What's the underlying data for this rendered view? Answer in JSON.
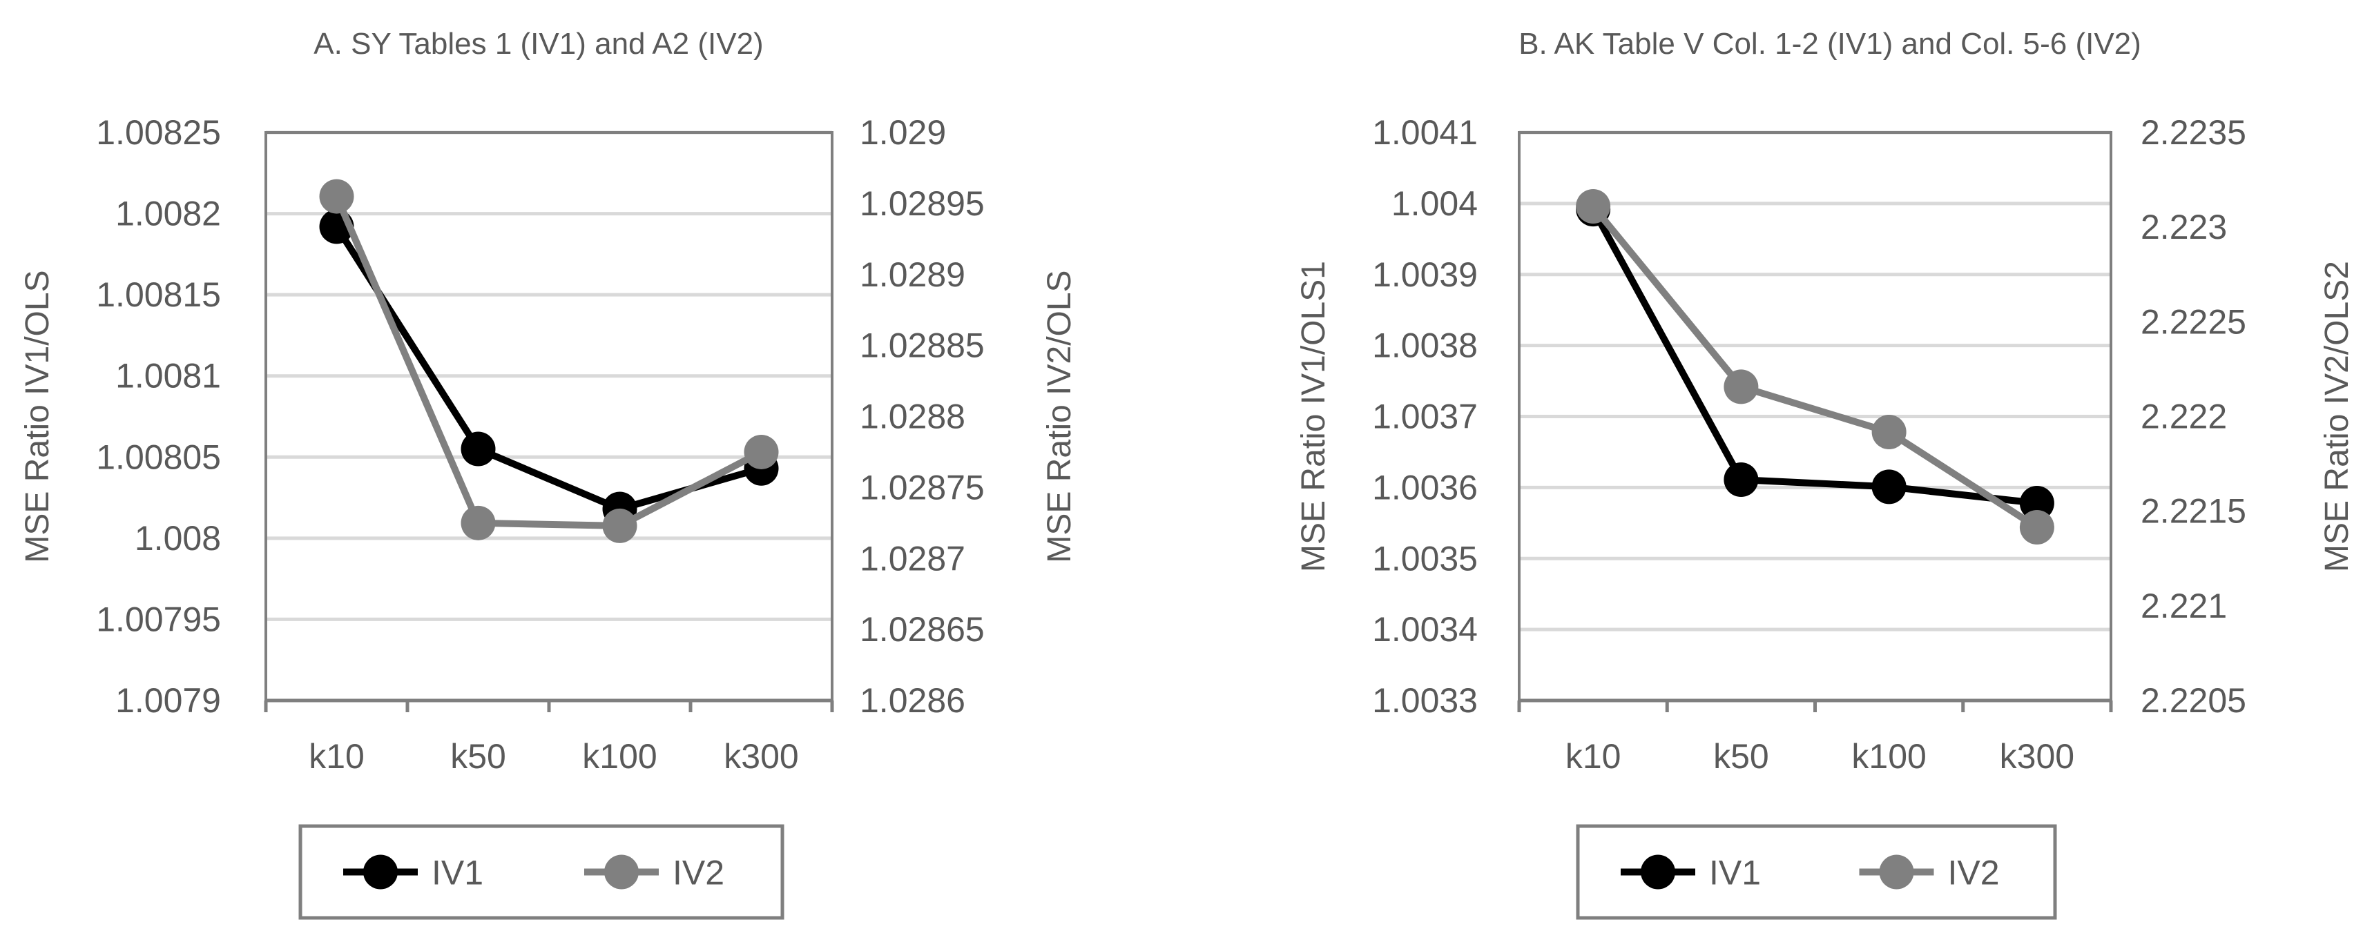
{
  "colors": {
    "IV1": "#000000",
    "IV2": "#808080"
  },
  "chart_data": [
    {
      "type": "line",
      "title": "A. SY Tables 1 (IV1) and A2 (IV2)",
      "categories": [
        "k10",
        "k50",
        "k100",
        "k300"
      ],
      "left_axis": {
        "label": "MSE Ratio IV1/OLS",
        "ylim": [
          1.0079,
          1.00825
        ],
        "ticks": [
          "1.0079",
          "1.00795",
          "1.008",
          "1.00805",
          "1.0081",
          "1.00815",
          "1.0082",
          "1.00825"
        ]
      },
      "right_axis": {
        "label": "MSE Ratio IV2/OLS",
        "ylim": [
          1.0286,
          1.029
        ],
        "ticks": [
          "1.0286",
          "1.02865",
          "1.0287",
          "1.02875",
          "1.0288",
          "1.02885",
          "1.0289",
          "1.02895",
          "1.029"
        ]
      },
      "series": [
        {
          "name": "IV1",
          "axis": "left",
          "values": [
            1.008192,
            1.008055,
            1.008018,
            1.008043
          ]
        },
        {
          "name": "IV2",
          "axis": "right",
          "values": [
            1.028955,
            1.028725,
            1.028723,
            1.028775
          ]
        }
      ],
      "grid": true,
      "legend": "bottom"
    },
    {
      "type": "line",
      "title": "B. AK Table V Col. 1-2 (IV1) and Col. 5-6 (IV2)",
      "categories": [
        "k10",
        "k50",
        "k100",
        "k300"
      ],
      "left_axis": {
        "label": "MSE Ratio IV1/OLS1",
        "ylim": [
          1.0033,
          1.0041
        ],
        "ticks": [
          "1.0033",
          "1.0034",
          "1.0035",
          "1.0036",
          "1.0037",
          "1.0038",
          "1.0039",
          "1.004",
          "1.0041"
        ]
      },
      "right_axis": {
        "label": "MSE Ratio IV2/OLS2",
        "ylim": [
          2.2205,
          2.2235
        ],
        "ticks": [
          "2.2205",
          "2.221",
          "2.2215",
          "2.222",
          "2.2225",
          "2.223",
          "2.2235"
        ]
      },
      "series": [
        {
          "name": "IV1",
          "axis": "left",
          "values": [
            1.003992,
            1.003611,
            1.003601,
            1.003578
          ]
        },
        {
          "name": "IV2",
          "axis": "right",
          "values": [
            2.22311,
            2.222157,
            2.221918,
            2.221415
          ]
        }
      ],
      "grid": true,
      "legend": "bottom"
    }
  ]
}
